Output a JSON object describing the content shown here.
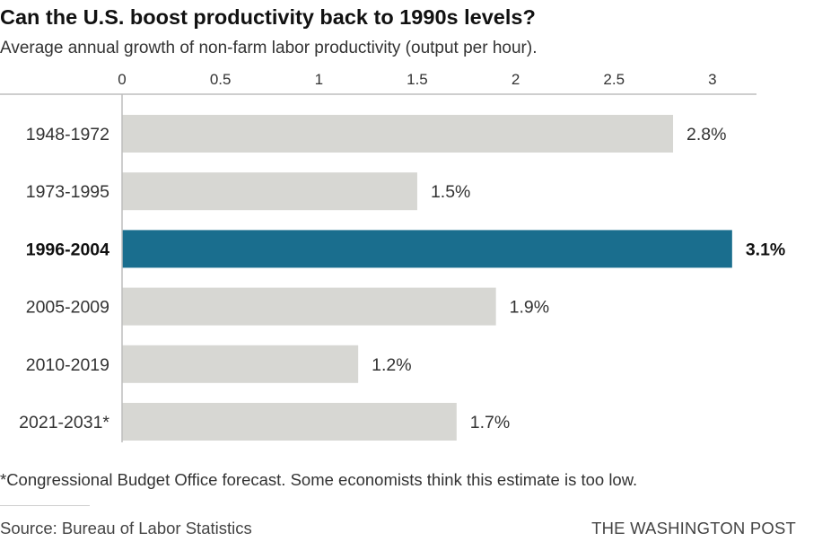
{
  "title": "Can the U.S. boost productivity back to 1990s levels?",
  "subtitle": "Average annual growth of non-farm labor productivity (output per hour).",
  "footnote": "*Congressional Budget Office forecast. Some economists think this estimate is too low.",
  "source": "Source: Bureau of Labor Statistics",
  "brand": "THE WASHINGTON POST",
  "colors": {
    "bar_default": "#d7d7d3",
    "bar_highlight": "#1a6e8e",
    "axis_line": "#bdbdbd",
    "tick_text": "#333333"
  },
  "chart_data": {
    "type": "bar",
    "orientation": "horizontal",
    "categories": [
      "1948-1972",
      "1973-1995",
      "1996-2004",
      "2005-2009",
      "2010-2019",
      "2021-2031*"
    ],
    "values": [
      2.8,
      1.5,
      3.1,
      1.9,
      1.2,
      1.7
    ],
    "value_labels": [
      "2.8%",
      "1.5%",
      "3.1%",
      "1.9%",
      "1.2%",
      "1.7%"
    ],
    "highlight_index": 2,
    "xlim": [
      0,
      3.2
    ],
    "xticks": [
      0,
      0.5,
      1,
      1.5,
      2,
      2.5,
      3
    ],
    "xtick_labels": [
      "0",
      "0.5",
      "1",
      "1.5",
      "2",
      "2.5",
      "3"
    ],
    "axis_position": "top",
    "grid": false,
    "legend": false
  }
}
